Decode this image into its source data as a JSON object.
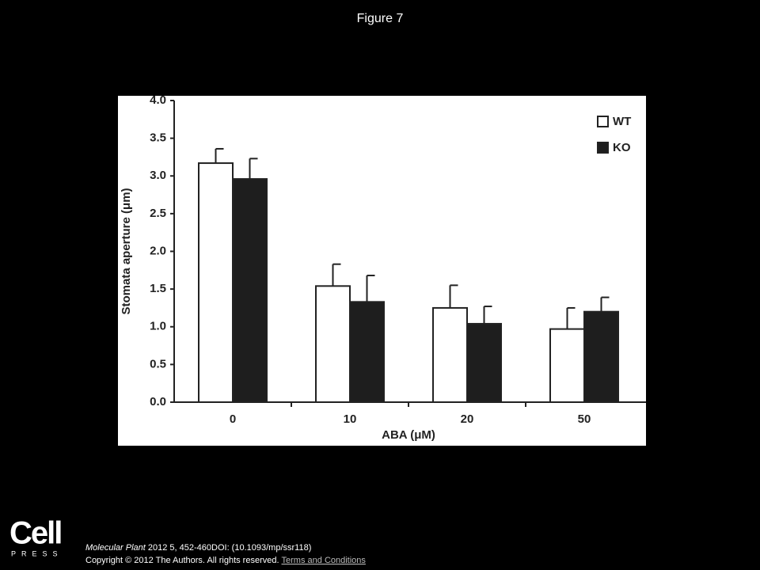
{
  "slide": {
    "title": "Figure 7",
    "journal": "Molecular Plant",
    "citation": " 2012 5, 452-460DOI: (10.1093/mp/ssr118)",
    "copyright": "Copyright © 2012 The Authors. All rights reserved.",
    "link": "Terms and Conditions",
    "logo": "Cell",
    "logo_sub": "PRESS"
  },
  "chart_data": {
    "type": "bar",
    "x_label": "ABA (μM)",
    "y_label": "Stomata aperture (μm)",
    "categories": [
      "0",
      "10",
      "20",
      "50"
    ],
    "series": [
      {
        "name": "WT",
        "color": "#ffffff",
        "values": [
          3.17,
          1.54,
          1.25,
          0.97
        ],
        "errors": [
          0.19,
          0.29,
          0.3,
          0.28
        ]
      },
      {
        "name": "KO",
        "color": "#1e1e1e",
        "values": [
          2.96,
          1.33,
          1.04,
          1.2
        ],
        "errors": [
          0.27,
          0.35,
          0.23,
          0.19
        ]
      }
    ],
    "ylim": [
      0,
      4
    ],
    "yticks": [
      {
        "value": 0,
        "label": "0.0"
      },
      0.5,
      {
        "value": 1,
        "label": "1.0"
      },
      1.5,
      {
        "value": 2,
        "label": "2.0"
      },
      2.5,
      {
        "value": 3,
        "label": "3.0"
      },
      3.5,
      {
        "value": 4,
        "label": "4.0"
      }
    ],
    "legend": "top-right"
  }
}
